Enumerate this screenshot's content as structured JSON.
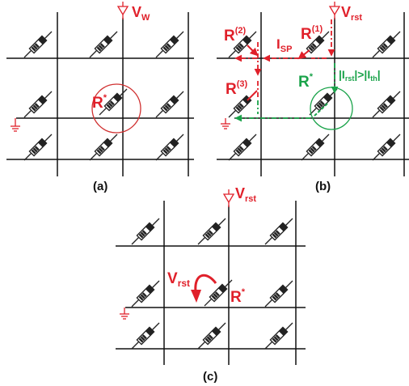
{
  "colors": {
    "red": "#e0202a",
    "green": "#1aa34a",
    "black": "#111111"
  },
  "panel_a": {
    "caption": "(a)",
    "voltage_label": "V",
    "voltage_sub": "W",
    "target_label": "R",
    "target_sup": "*"
  },
  "panel_b": {
    "caption": "(b)",
    "voltage_label": "V",
    "voltage_sub": "rst",
    "r1_label": "R",
    "r1_sup": "(1)",
    "r2_label": "R",
    "r2_sup": "(2)",
    "r3_label": "R",
    "r3_sup": "(3)",
    "isp_label": "I",
    "isp_sub": "SP",
    "target_label": "R",
    "target_sup": "*",
    "condition_text": "|I",
    "condition_sub1": "rst",
    "condition_mid": "|>|I",
    "condition_sub2": "th",
    "condition_end": "|"
  },
  "panel_c": {
    "caption": "(c)",
    "voltage_label": "V",
    "voltage_sub": "rst",
    "arrow_label": "V",
    "arrow_sub": "rst",
    "target_label": "R",
    "target_sup": "*"
  }
}
